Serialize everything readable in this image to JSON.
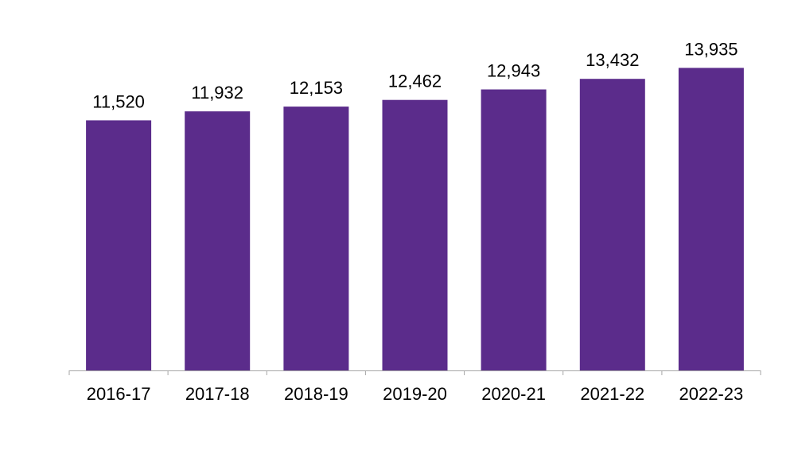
{
  "chart_data": {
    "type": "bar",
    "title": "",
    "xlabel": "",
    "ylabel": "",
    "categories": [
      "2016-17",
      "2017-18",
      "2018-19",
      "2019-20",
      "2020-21",
      "2021-22",
      "2022-23"
    ],
    "values": [
      11520,
      11932,
      12153,
      12462,
      12943,
      13432,
      13935
    ],
    "data_labels": [
      "11,520",
      "11,932",
      "12,153",
      "12,462",
      "12,943",
      "13,432",
      "13,935"
    ],
    "ylim": [
      0,
      15000
    ],
    "grid": false,
    "legend": "none",
    "colors": {
      "bar": "#5B2C8B",
      "axis": "#A6A6A6",
      "text": "#000000"
    }
  }
}
